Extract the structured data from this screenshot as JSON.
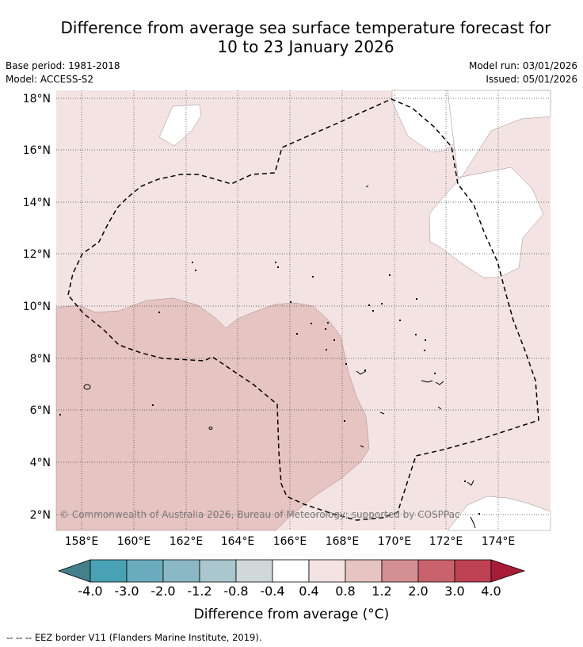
{
  "title_line1": "Difference from average sea surface temperature forecast for",
  "title_line2": "10 to 23 January 2026",
  "base_period": "Base period: 1981-2018",
  "model": "Model: ACCESS-S2",
  "model_run": "Model run: 03/01/2026",
  "issued": "Issued: 05/01/2026",
  "lat_labels": [
    "18°N",
    "16°N",
    "14°N",
    "12°N",
    "10°N",
    "8°N",
    "6°N",
    "4°N",
    "2°N"
  ],
  "lon_labels": [
    "158°E",
    "160°E",
    "162°E",
    "164°E",
    "166°E",
    "168°E",
    "170°E",
    "172°E",
    "174°E"
  ],
  "copyright": "© Commonwealth of Australia 2026, Bureau of Meteorology; supported by COSPPac",
  "colorbar": {
    "colors": [
      "#43808c",
      "#48a2b4",
      "#6aacbe",
      "#8ab9c5",
      "#a9c7cc",
      "#d0d8da",
      "#ffffff",
      "#f3e4e3",
      "#e6c4c1",
      "#d48f95",
      "#c8636d",
      "#be4251",
      "#a81c38"
    ],
    "tick_labels": [
      "-4.0",
      "-3.0",
      "-2.0",
      "-1.2",
      "-0.8",
      "-0.4",
      "0.4",
      "0.8",
      "1.2",
      "2.0",
      "3.0",
      "4.0"
    ],
    "label": "Difference from average (°C)"
  },
  "legend": "--  --  -- EEZ border V11 (Flanders Marine Institute, 2019)."
}
